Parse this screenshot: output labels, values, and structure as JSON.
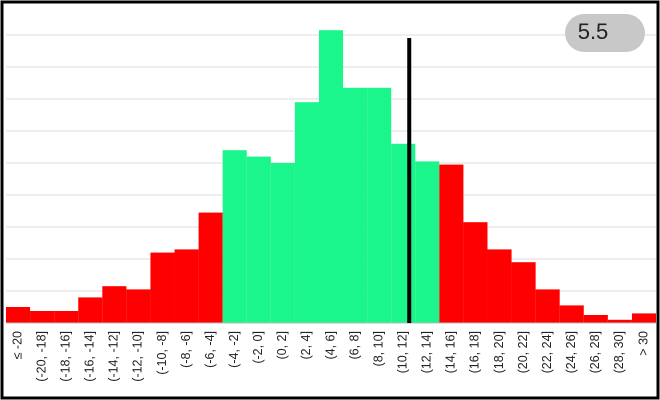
{
  "chart_data": {
    "type": "bar",
    "categories": [
      "≤ -20",
      "(-20, -18]",
      "(-18, -16]",
      "(-16, -14]",
      "(-14, -12]",
      "(-12, -10]",
      "(-10, -8]",
      "(-8, -6]",
      "(-6, -4]",
      "(-4, -2]",
      "(-2, 0]",
      "(0, 2]",
      "(2, 4]",
      "(4, 6]",
      "(6, 8]",
      "(8, 10]",
      "(10, 12]",
      "(12, 14]",
      "(14, 16]",
      "(16, 18]",
      "(18, 20]",
      "(20, 22]",
      "(22, 24]",
      "(24, 26]",
      "(26, 28]",
      "(28, 30]",
      "> 30"
    ],
    "values": [
      0.5,
      0.375,
      0.375,
      0.8,
      1.15,
      1.05,
      2.2,
      2.3,
      3.45,
      5.4,
      5.2,
      5.0,
      6.9,
      9.15,
      7.35,
      7.35,
      5.6,
      5.05,
      4.95,
      3.15,
      2.3,
      1.9,
      1.05,
      0.55,
      0.25,
      0.1,
      0.3
    ],
    "colors": [
      "#ff0000",
      "#ff0000",
      "#ff0000",
      "#ff0000",
      "#ff0000",
      "#ff0000",
      "#ff0000",
      "#ff0000",
      "#ff0000",
      "#1af58c",
      "#1af58c",
      "#1af58c",
      "#1af58c",
      "#1af58c",
      "#1af58c",
      "#1af58c",
      "#1af58c",
      "#1af58c",
      "#ff0000",
      "#ff0000",
      "#ff0000",
      "#ff0000",
      "#ff0000",
      "#ff0000",
      "#ff0000",
      "#ff0000",
      "#ff0000"
    ],
    "xlim": [
      -22,
      32
    ],
    "marker": 11.5,
    "ylim": [
      0,
      10
    ],
    "yticks": [
      1,
      2,
      3,
      4,
      5,
      6,
      7,
      8,
      9
    ],
    "grid": true,
    "badge": "5.5"
  }
}
